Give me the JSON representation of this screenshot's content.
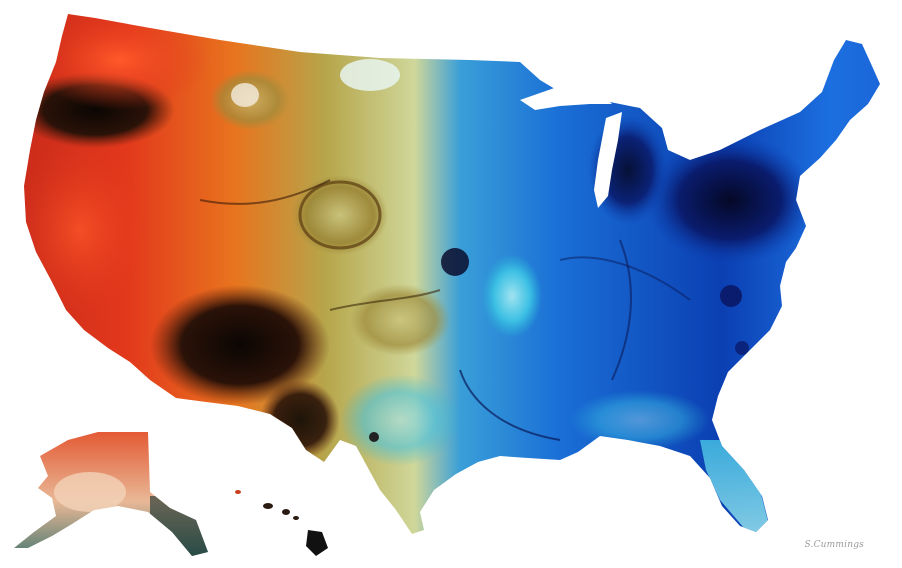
{
  "artwork": {
    "subject": "us-map-watercolor",
    "signature": "S.Cummings",
    "palette": {
      "west_red": "#e2381c",
      "west_dark": "#2a1208",
      "mid_orange": "#e8741e",
      "olive": "#b6a54a",
      "pale_green": "#cfd79a",
      "teal": "#2ab5d8",
      "blue": "#1a6fd6",
      "deep_blue": "#0b2a8f",
      "navy": "#070d3a",
      "alaska_peach": "#e9b896",
      "hawaii_black": "#111111"
    }
  }
}
